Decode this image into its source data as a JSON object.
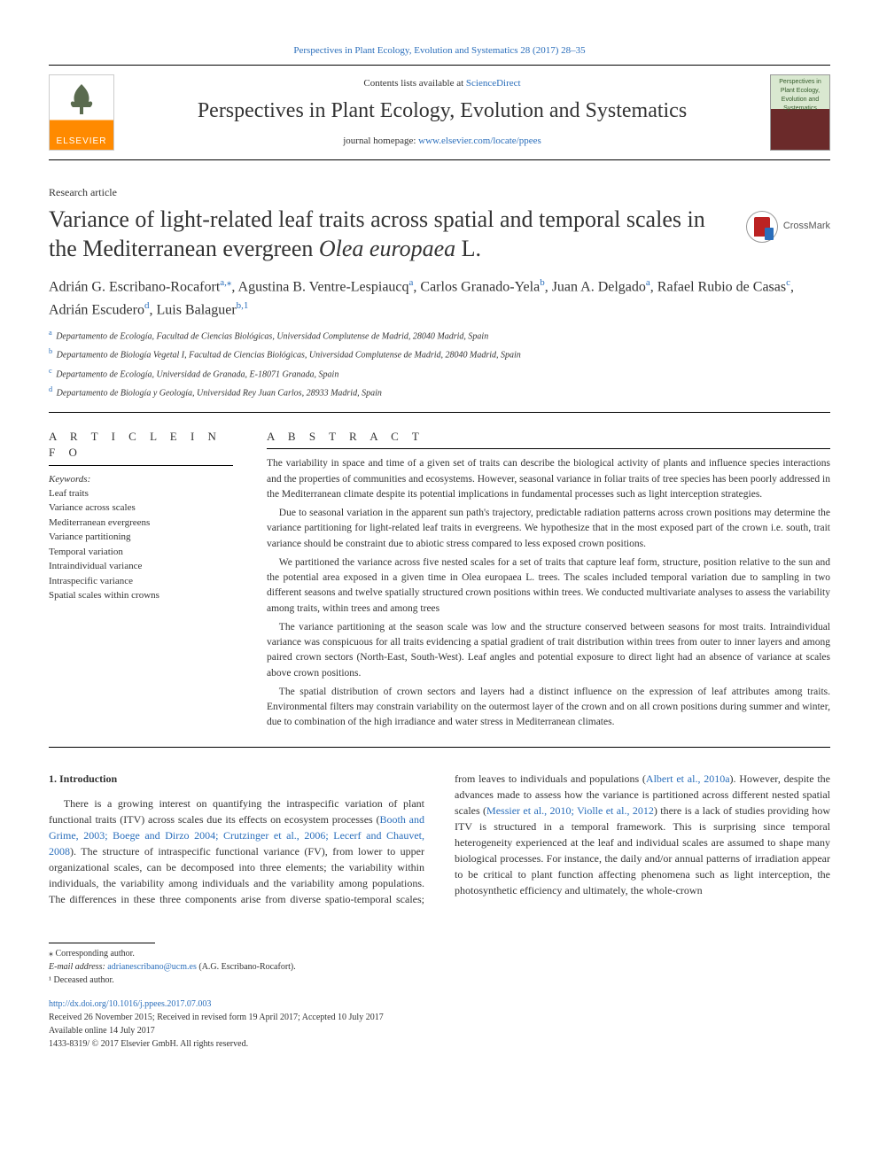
{
  "top_reference": {
    "journal": "Perspectives in Plant Ecology, Evolution and Systematics",
    "citation_suffix": " 28 (2017) 28–35",
    "link_color": "#2a6ebb"
  },
  "header": {
    "contents_prefix": "Contents lists available at ",
    "contents_site": "ScienceDirect",
    "journal_title": "Perspectives in Plant Ecology, Evolution and Systematics",
    "homepage_prefix": "journal homepage: ",
    "homepage_url": "www.elsevier.com/locate/ppees",
    "publisher_logo_text": "ELSEVIER",
    "cover_caption": "Perspectives in Plant Ecology, Evolution and Systematics"
  },
  "article": {
    "type": "Research article",
    "title_pre": "Variance of light-related leaf traits across spatial and temporal scales in the Mediterranean evergreen ",
    "title_italic": "Olea europaea",
    "title_post": " L.",
    "crossmark_label": "CrossMark"
  },
  "authors_html": "Adrián G. Escribano-Rocafort<sup>a,</sup><sup>⁎</sup>, Agustina B. Ventre-Lespiaucq<sup>a</sup>, Carlos Granado-Yela<sup>b</sup>, Juan A. Delgado<sup>a</sup>, Rafael Rubio de Casas<sup>c</sup>, Adrián Escudero<sup>d</sup>, Luis Balaguer<sup>b,1</sup>",
  "affiliations": [
    {
      "sup": "a",
      "text": "Departamento de Ecología, Facultad de Ciencias Biológicas, Universidad Complutense de Madrid, 28040 Madrid, Spain"
    },
    {
      "sup": "b",
      "text": "Departamento de Biología Vegetal I, Facultad de Ciencias Biológicas, Universidad Complutense de Madrid, 28040 Madrid, Spain"
    },
    {
      "sup": "c",
      "text": "Departamento de Ecología, Universidad de Granada, E-18071 Granada, Spain"
    },
    {
      "sup": "d",
      "text": "Departamento de Biología y Geología, Universidad Rey Juan Carlos, 28933 Madrid, Spain"
    }
  ],
  "article_info": {
    "heading": "A R T I C L E  I N F O",
    "kw_label": "Keywords:",
    "keywords": [
      "Leaf traits",
      "Variance across scales",
      "Mediterranean evergreens",
      "Variance partitioning",
      "Temporal variation",
      "Intraindividual variance",
      "Intraspecific variance",
      "Spatial scales within crowns"
    ]
  },
  "abstract": {
    "heading": "A B S T R A C T",
    "paragraphs": [
      "The variability in space and time of a given set of traits can describe the biological activity of plants and influence species interactions and the properties of communities and ecosystems. However, seasonal variance in foliar traits of tree species has been poorly addressed in the Mediterranean climate despite its potential implications in fundamental processes such as light interception strategies.",
      "Due to seasonal variation in the apparent sun path's trajectory, predictable radiation patterns across crown positions may determine the variance partitioning for light-related leaf traits in evergreens. We hypothesize that in the most exposed part of the crown i.e. south, trait variance should be constraint due to abiotic stress compared to less exposed crown positions.",
      "We partitioned the variance across five nested scales for a set of traits that capture leaf form, structure, position relative to the sun and the potential area exposed in a given time in Olea europaea L. trees. The scales included temporal variation due to sampling in two different seasons and twelve spatially structured crown positions within trees. We conducted multivariate analyses to assess the variability among traits, within trees and among trees",
      "The variance partitioning at the season scale was low and the structure conserved between seasons for most traits. Intraindividual variance was conspicuous for all traits evidencing a spatial gradient of trait distribution within trees from outer to inner layers and among paired crown sectors (North-East, South-West). Leaf angles and potential exposure to direct light had an absence of variance at scales above crown positions.",
      "The spatial distribution of crown sectors and layers had a distinct influence on the expression of leaf attributes among traits. Environmental filters may constrain variability on the outermost layer of the crown and on all crown positions during summer and winter, due to combination of the high irradiance and water stress in Mediterranean climates."
    ]
  },
  "body": {
    "section_number": "1.",
    "section_title": "Introduction",
    "col1_pre": "There is a growing interest on quantifying the intraspecific variation of plant functional traits (ITV) across scales due its effects on ecosystem processes (",
    "col1_cite": "Booth and Grime, 2003; Boege and Dirzo 2004; Crutzinger et al., 2006; Lecerf and Chauvet, 2008",
    "col1_post": "). The structure of intraspecific functional variance (FV), from lower to upper organizational scales, can be decomposed into three elements; the variability within individuals, the variability among individuals and the variability among populations. The differences in these three components arise from diverse ",
    "col2_pre": "spatio-temporal scales; from leaves to individuals and populations (",
    "col2_cite1": "Albert et al., 2010a",
    "col2_mid": "). However, despite the advances made to assess how the variance is partitioned across different nested spatial scales (",
    "col2_cite2": "Messier et al., 2010; Violle et al., 2012",
    "col2_post": ") there is a lack of studies providing how ITV is structured in a temporal framework. This is surprising since temporal heterogeneity experienced at the leaf and individual scales are assumed to shape many biological processes. For instance, the daily and/or annual patterns of irradiation appear to be critical to plant function affecting phenomena such as light interception, the photosynthetic efficiency and ultimately, the whole-crown"
  },
  "footnotes": {
    "corr": "⁎ Corresponding author.",
    "email_label": "E-mail address: ",
    "email": "adrianescribano@ucm.es",
    "email_author": " (A.G. Escribano-Rocafort).",
    "deceased": "¹ Deceased author."
  },
  "doi_block": {
    "doi": "http://dx.doi.org/10.1016/j.ppees.2017.07.003",
    "received": "Received 26 November 2015; Received in revised form 19 April 2017; Accepted 10 July 2017",
    "available": "Available online 14 July 2017",
    "issn": "1433-8319/ © 2017 Elsevier GmbH. All rights reserved."
  },
  "colors": {
    "link": "#2a6ebb",
    "elsevier_orange": "#ff8a00",
    "text": "#333333",
    "rule": "#000000"
  }
}
